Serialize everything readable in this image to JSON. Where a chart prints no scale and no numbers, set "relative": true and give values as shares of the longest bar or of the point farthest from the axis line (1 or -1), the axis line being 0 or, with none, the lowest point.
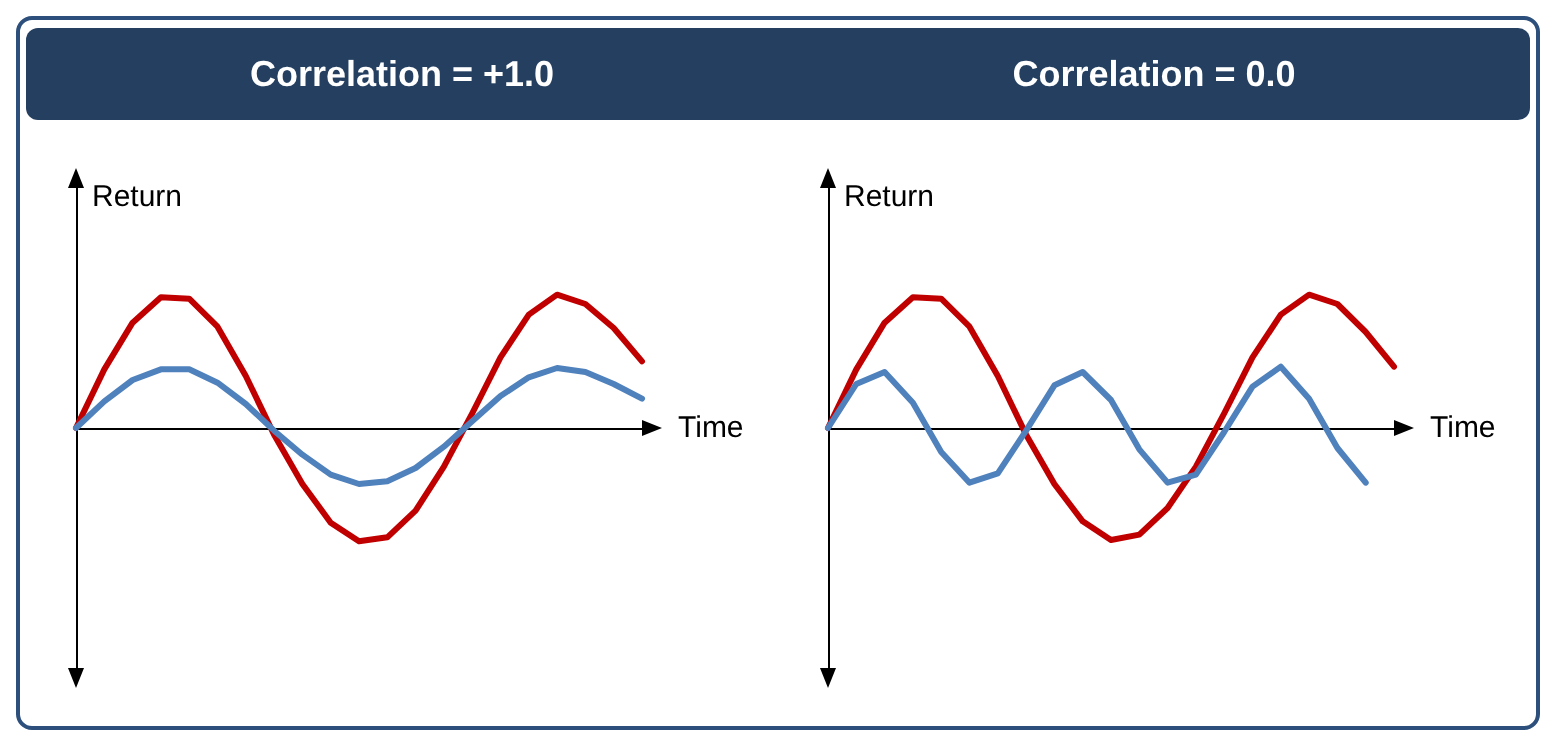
{
  "chart_data": [
    {
      "type": "line",
      "title": "Correlation = +1.0",
      "xlabel": "Time",
      "ylabel": "Return",
      "relative": true,
      "marker": "none",
      "categories": [
        null,
        null,
        null,
        null,
        null,
        null,
        null,
        null,
        null,
        null,
        null,
        null,
        null,
        null,
        null,
        null,
        null,
        null,
        null,
        null,
        null
      ],
      "series": [
        {
          "color": "#c00000",
          "values": [
            0,
            0.44,
            0.79,
            0.98,
            0.97,
            0.76,
            0.39,
            -0.05,
            -0.42,
            -0.71,
            -0.85,
            -0.82,
            -0.62,
            -0.29,
            0.11,
            0.53,
            0.85,
            1,
            0.93,
            0.75,
            0.5
          ]
        },
        {
          "color": "#4f81bd",
          "values": [
            0,
            0.2,
            0.36,
            0.44,
            0.44,
            0.34,
            0.18,
            -0.02,
            -0.2,
            -0.35,
            -0.42,
            -0.4,
            -0.3,
            -0.14,
            0.05,
            0.24,
            0.38,
            0.45,
            0.42,
            0.33,
            0.22
          ]
        }
      ]
    },
    {
      "type": "line",
      "title": "Correlation = 0.0",
      "xlabel": "Time",
      "ylabel": "Return",
      "relative": true,
      "marker": "none",
      "categories": [
        null,
        null,
        null,
        null,
        null,
        null,
        null,
        null,
        null,
        null,
        null,
        null,
        null,
        null,
        null,
        null,
        null,
        null,
        null,
        null,
        null
      ],
      "series": [
        {
          "color": "#c00000",
          "values": [
            0,
            0.44,
            0.79,
            0.98,
            0.97,
            0.76,
            0.39,
            -0.05,
            -0.42,
            -0.7,
            -0.84,
            -0.8,
            -0.6,
            -0.29,
            0.11,
            0.53,
            0.85,
            1,
            0.93,
            0.72,
            0.46
          ]
        },
        {
          "color": "#4f81bd",
          "values": [
            0,
            0.33,
            0.42,
            0.19,
            -0.18,
            -0.41,
            -0.34,
            -0.02,
            0.32,
            0.42,
            0.21,
            -0.16,
            -0.41,
            -0.35,
            -0.03,
            0.31,
            0.46,
            0.22,
            -0.15,
            -0.41,
            null
          ]
        }
      ]
    }
  ]
}
